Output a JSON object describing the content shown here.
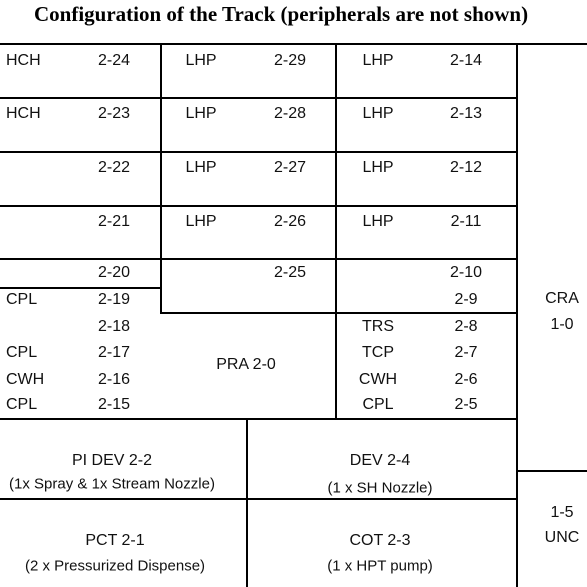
{
  "title": "Configuration of the Track (peripherals are not shown)",
  "grid": {
    "rows": [
      {
        "c1": "HCH",
        "c2": "2-24",
        "c3": "LHP",
        "c4": "2-29",
        "c5": "LHP",
        "c6": "2-14"
      },
      {
        "c1": "HCH",
        "c2": "2-23",
        "c3": "LHP",
        "c4": "2-28",
        "c5": "LHP",
        "c6": "2-13"
      },
      {
        "c1": "",
        "c2": "2-22",
        "c3": "LHP",
        "c4": "2-27",
        "c5": "LHP",
        "c6": "2-12"
      },
      {
        "c1": "",
        "c2": "2-21",
        "c3": "LHP",
        "c4": "2-26",
        "c5": "LHP",
        "c6": "2-11"
      },
      {
        "c1": "",
        "c2": "2-20",
        "c3": "",
        "c4": "2-25",
        "c5": "",
        "c6": "2-10"
      },
      {
        "c1": "CPL",
        "c2": "2-19",
        "c3": "",
        "c4": "",
        "c5": "",
        "c6": "2-9"
      },
      {
        "c1": "",
        "c2": "2-18",
        "c3": "",
        "c4": "",
        "c5": "TRS",
        "c6": "2-8"
      },
      {
        "c1": "CPL",
        "c2": "2-17",
        "c3": "",
        "c4": "",
        "c5": "TCP",
        "c6": "2-7"
      },
      {
        "c1": "CWH",
        "c2": "2-16",
        "c3": "",
        "c4": "",
        "c5": "CWH",
        "c6": "2-6"
      },
      {
        "c1": "CPL",
        "c2": "2-15",
        "c3": "",
        "c4": "",
        "c5": "CPL",
        "c6": "2-5"
      }
    ],
    "pra": "PRA 2-0",
    "cra_name": "CRA",
    "cra_id": "1-0",
    "unc_id": "1-5",
    "unc_name": "UNC"
  },
  "bottom": {
    "pi_dev": "PI DEV 2-2",
    "pi_dev_note": "(1x Spray & 1x Stream Nozzle)",
    "dev": "DEV 2-4",
    "dev_note": "(1 x SH Nozzle)",
    "pct": "PCT 2-1",
    "pct_note": "(2 x Pressurized Dispense)",
    "cot": "COT 2-3",
    "cot_note": "(1 x HPT pump)"
  }
}
